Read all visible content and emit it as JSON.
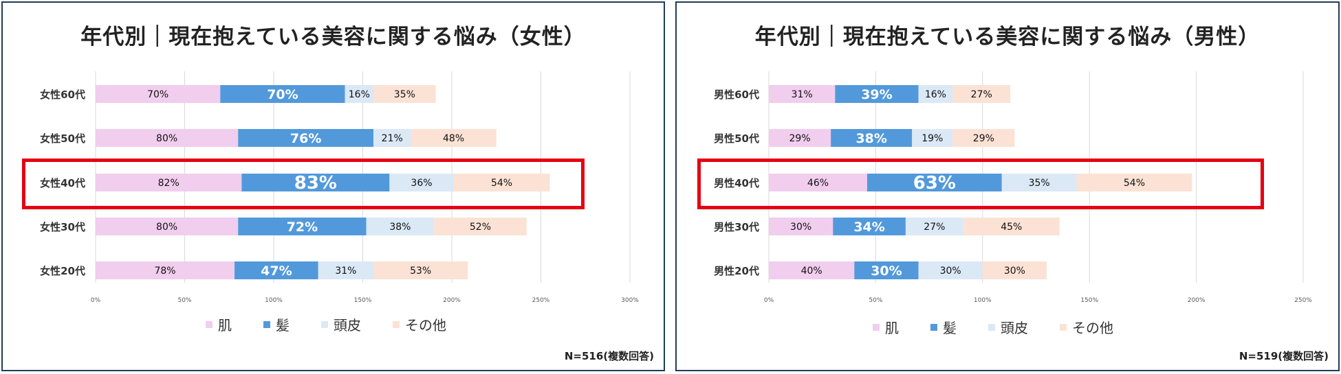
{
  "colors": {
    "skin": "#f1cdee",
    "hair": "#5299db",
    "scalp": "#dbe8f6",
    "other": "#fbe2d5",
    "highlight": "#e60012",
    "border": "#1f3b57"
  },
  "chart_data": [
    {
      "type": "bar",
      "stacked": true,
      "orientation": "horizontal",
      "title": "年代別｜現在抱えている美容に関する悩み（女性）",
      "categories": [
        "女性60代",
        "女性50代",
        "女性40代",
        "女性30代",
        "女性20代"
      ],
      "series": [
        {
          "name": "肌",
          "values": [
            70,
            80,
            82,
            80,
            78
          ],
          "labels": [
            "70%",
            "80%",
            "82%",
            "80%",
            "78%"
          ]
        },
        {
          "name": "髪",
          "values": [
            70,
            76,
            83,
            72,
            47
          ],
          "labels": [
            "70%",
            "76%",
            "83%",
            "72%",
            "47%"
          ]
        },
        {
          "name": "頭皮",
          "values": [
            16,
            21,
            36,
            38,
            31
          ],
          "labels": [
            "16%",
            "21%",
            "36%",
            "38%",
            "31%"
          ]
        },
        {
          "name": "その他",
          "values": [
            35,
            48,
            54,
            52,
            53
          ],
          "labels": [
            "35%",
            "48%",
            "54%",
            "52%",
            "53%"
          ]
        }
      ],
      "xlim": [
        0,
        300
      ],
      "xticks": [
        0,
        50,
        100,
        150,
        200,
        250,
        300
      ],
      "xtick_labels": [
        "0%",
        "50%",
        "100%",
        "150%",
        "200%",
        "250%",
        "300%"
      ],
      "grid": true,
      "legend_position": "bottom",
      "highlighted_category": "女性40代",
      "note": "N=516(複数回答)"
    },
    {
      "type": "bar",
      "stacked": true,
      "orientation": "horizontal",
      "title": "年代別｜現在抱えている美容に関する悩み（男性）",
      "categories": [
        "男性60代",
        "男性50代",
        "男性40代",
        "男性30代",
        "男性20代"
      ],
      "series": [
        {
          "name": "肌",
          "values": [
            31,
            29,
            46,
            30,
            40
          ],
          "labels": [
            "31%",
            "29%",
            "46%",
            "30%",
            "40%"
          ]
        },
        {
          "name": "髪",
          "values": [
            39,
            38,
            63,
            34,
            30
          ],
          "labels": [
            "39%",
            "38%",
            "63%",
            "34%",
            "30%"
          ]
        },
        {
          "name": "頭皮",
          "values": [
            16,
            19,
            35,
            27,
            30
          ],
          "labels": [
            "16%",
            "19%",
            "35%",
            "27%",
            "30%"
          ]
        },
        {
          "name": "その他",
          "values": [
            27,
            29,
            54,
            45,
            30
          ],
          "labels": [
            "27%",
            "29%",
            "54%",
            "45%",
            "30%"
          ]
        }
      ],
      "xlim": [
        0,
        250
      ],
      "xticks": [
        0,
        50,
        100,
        150,
        200,
        250
      ],
      "xtick_labels": [
        "0%",
        "50%",
        "100%",
        "150%",
        "200%",
        "250%"
      ],
      "grid": true,
      "legend_position": "bottom",
      "highlighted_category": "男性40代",
      "note": "N=519(複数回答)"
    }
  ]
}
